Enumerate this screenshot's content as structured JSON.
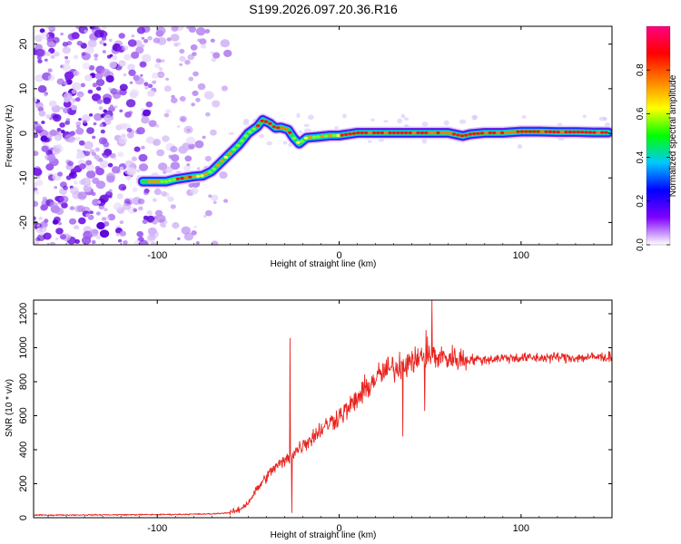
{
  "title": "S199.2026.097.20.36.R16",
  "chart_data": [
    {
      "type": "heatmap",
      "title": "S199.2026.097.20.36.R16",
      "xlabel": "Height of straight line (km)",
      "ylabel": "Frequency (Hz)",
      "xlim": [
        -168,
        150
      ],
      "ylim": [
        -25,
        24
      ],
      "x_tick_values": [
        -100,
        0,
        100
      ],
      "y_tick_values": [
        -20,
        -10,
        0,
        10,
        20
      ],
      "x_tick_labels": [
        "-100",
        "0",
        "100"
      ],
      "y_tick_labels": [
        "-20",
        "-10",
        "0",
        "10",
        "20"
      ],
      "grid": false,
      "ridge_line": {
        "x": [
          -108,
          -95,
          -90,
          -85,
          -80,
          -75,
          -70,
          -65,
          -60,
          -55,
          -50,
          -45,
          -42,
          -38,
          -35,
          -32,
          -28,
          -25,
          -22,
          -18,
          -12,
          -5,
          0,
          10,
          20,
          30,
          40,
          50,
          60,
          68,
          72,
          80,
          90,
          100,
          110,
          120,
          130,
          140,
          148
        ],
        "y": [
          -10.8,
          -10.8,
          -10.3,
          -10.0,
          -9.7,
          -9.5,
          -8.5,
          -6.5,
          -4.5,
          -2.5,
          0.0,
          1.5,
          3.0,
          2.2,
          1.2,
          1.3,
          0.8,
          -1.0,
          -2.3,
          -1.0,
          -0.8,
          -0.5,
          -0.5,
          0.1,
          0.1,
          0.1,
          0.1,
          0.1,
          0.1,
          -0.6,
          -0.2,
          0.1,
          0.1,
          0.4,
          0.4,
          0.3,
          0.3,
          0.2,
          0.2
        ]
      },
      "noise_region_x": [
        -168,
        -60
      ],
      "colorbar": {
        "label": "Normalized spectral amplitude",
        "range": [
          0.0,
          1.0
        ],
        "tick_values": [
          0.0,
          0.2,
          0.4,
          0.6,
          0.8
        ],
        "tick_labels": [
          "0.0",
          "0.2",
          "0.4",
          "0.6",
          "0.8"
        ],
        "colors": [
          "#ffffff",
          "#7f00ff",
          "#0000ff",
          "#00c8ff",
          "#00ff00",
          "#ffff00",
          "#ff8000",
          "#ff0000",
          "#ff0080"
        ]
      }
    },
    {
      "type": "line",
      "xlabel": "Height of straight line (km)",
      "ylabel": "SNR (10 * v/v)",
      "xlim": [
        -168,
        150
      ],
      "ylim": [
        0,
        1280
      ],
      "x_tick_values": [
        -100,
        0,
        100
      ],
      "y_tick_values": [
        0,
        200,
        400,
        600,
        800,
        1000,
        1200
      ],
      "x_tick_labels": [
        "-100",
        "0",
        "100"
      ],
      "y_tick_labels": [
        "0",
        "200",
        "400",
        "600",
        "800",
        "1000",
        "1200"
      ],
      "grid": false,
      "series": [
        {
          "name": "SNR",
          "color": "#e8231e",
          "envelope_x": [
            -168,
            -100,
            -70,
            -60,
            -55,
            -50,
            -45,
            -40,
            -35,
            -30,
            -25,
            -20,
            -15,
            -10,
            -5,
            0,
            5,
            10,
            15,
            20,
            25,
            30,
            35,
            40,
            45,
            50,
            55,
            60,
            70,
            80,
            90,
            100,
            110,
            120,
            130,
            140,
            150
          ],
          "envelope_y": [
            15,
            18,
            22,
            30,
            45,
            90,
            170,
            240,
            300,
            330,
            380,
            430,
            470,
            520,
            560,
            600,
            640,
            700,
            760,
            820,
            860,
            880,
            900,
            920,
            940,
            950,
            950,
            940,
            930,
            930,
            940,
            940,
            940,
            945,
            940,
            945,
            945
          ],
          "spikes": [
            {
              "x": -27,
              "y": 1055
            },
            {
              "x": -26,
              "y": 30
            },
            {
              "x": 35,
              "y": 1150
            },
            {
              "x": 35,
              "y": 480
            },
            {
              "x": 51,
              "y": 1280
            },
            {
              "x": 47,
              "y": 630
            }
          ]
        }
      ]
    }
  ]
}
